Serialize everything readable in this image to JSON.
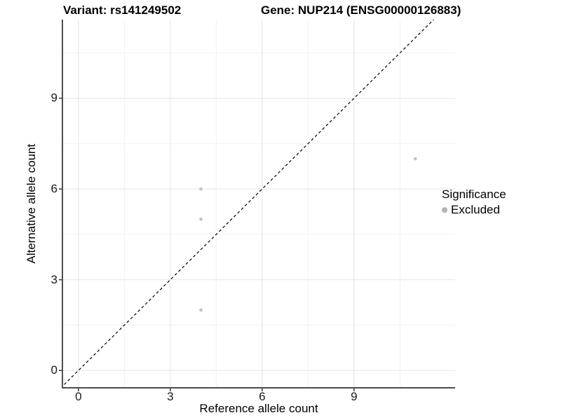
{
  "figure": {
    "title_variant": "Variant: rs141249502",
    "title_gene": "Gene: NUP214 (ENSG00000126883)"
  },
  "chart_data": {
    "type": "scatter",
    "title": "Variant: rs141249502  |  Gene: NUP214 (ENSG00000126883)",
    "xlabel": "Reference allele count",
    "ylabel": "Alternative allele count",
    "xlim": [
      -0.5,
      12.3
    ],
    "ylim": [
      -0.55,
      11.6
    ],
    "x_major_ticks": [
      0,
      3,
      6,
      9
    ],
    "y_major_ticks": [
      0,
      3,
      6,
      9
    ],
    "x_minor_gridlines": [
      1.5,
      4.5,
      7.5,
      10.5
    ],
    "y_minor_gridlines": [
      1.5,
      4.5,
      7.5,
      10.5
    ],
    "grid": true,
    "identity_line": {
      "slope": 1,
      "intercept": 0,
      "style": "dashed",
      "color": "#000000"
    },
    "series": [
      {
        "name": "Excluded",
        "color": "#c4c4c4",
        "points": [
          {
            "x": 4,
            "y": 6
          },
          {
            "x": 4,
            "y": 5
          },
          {
            "x": 4,
            "y": 2
          },
          {
            "x": 11,
            "y": 7
          }
        ]
      }
    ],
    "legend": {
      "title": "Significance",
      "position": "right",
      "entries": [
        {
          "label": "Excluded",
          "color": "#b3b3b3"
        }
      ]
    }
  },
  "colors": {
    "background": "#ffffff",
    "grid_major": "#e4e4e4",
    "grid_minor": "#f1f1f1",
    "axis_line": "#4d4d4d",
    "tick_mark": "#333333",
    "tick_text": "#1a1a1a",
    "point": "#c4c4c4",
    "identity_line": "#000000"
  }
}
